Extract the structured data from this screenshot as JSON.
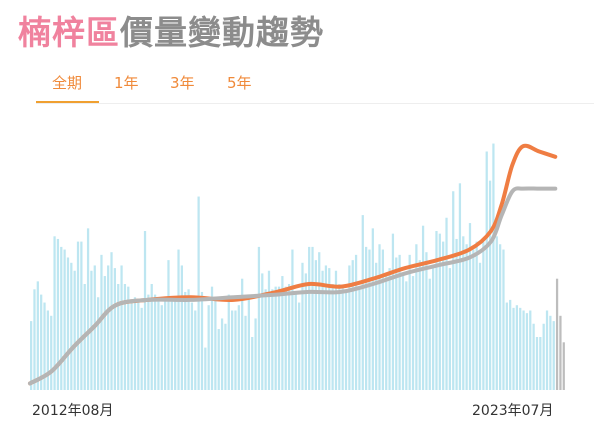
{
  "header": {
    "title_highlight": "楠梓區",
    "title_rest": "價量變動趨勢"
  },
  "tabs": [
    {
      "label": "全期",
      "active": true
    },
    {
      "label": "1年",
      "active": false
    },
    {
      "label": "3年",
      "active": false
    },
    {
      "label": "5年",
      "active": false
    }
  ],
  "colors": {
    "title_highlight": "#f0829e",
    "title_rest": "#8c8c8c",
    "tab_text": "#f08a3a",
    "tab_underline": "#f0a030",
    "volume_bar": "#bde6f1",
    "volume_bar_partial": "#bdbdbd",
    "price_line": "#ef7d43",
    "trend_line": "#b5b5b5"
  },
  "chart_data": {
    "type": "bar",
    "x_start_label": "2012年08月",
    "x_end_label": "2023年07月",
    "volume_bars_relative": [
      0.26,
      0.38,
      0.41,
      0.36,
      0.33,
      0.3,
      0.28,
      0.58,
      0.57,
      0.54,
      0.53,
      0.5,
      0.48,
      0.45,
      0.56,
      0.56,
      0.4,
      0.61,
      0.45,
      0.47,
      0.35,
      0.51,
      0.43,
      0.47,
      0.52,
      0.46,
      0.4,
      0.47,
      0.4,
      0.39,
      0.34,
      0.35,
      0.33,
      0.31,
      0.6,
      0.36,
      0.4,
      0.36,
      0.35,
      0.32,
      0.34,
      0.49,
      0.34,
      0.34,
      0.53,
      0.47,
      0.37,
      0.38,
      0.33,
      0.3,
      0.73,
      0.37,
      0.16,
      0.32,
      0.39,
      0.34,
      0.23,
      0.27,
      0.25,
      0.36,
      0.3,
      0.3,
      0.32,
      0.42,
      0.28,
      0.35,
      0.2,
      0.27,
      0.54,
      0.44,
      0.38,
      0.45,
      0.38,
      0.39,
      0.39,
      0.43,
      0.39,
      0.4,
      0.53,
      0.37,
      0.33,
      0.48,
      0.44,
      0.54,
      0.54,
      0.49,
      0.52,
      0.45,
      0.47,
      0.46,
      0.4,
      0.45,
      0.4,
      0.39,
      0.37,
      0.47,
      0.49,
      0.51,
      0.39,
      0.66,
      0.54,
      0.53,
      0.61,
      0.48,
      0.55,
      0.53,
      0.43,
      0.46,
      0.59,
      0.5,
      0.51,
      0.44,
      0.41,
      0.51,
      0.43,
      0.55,
      0.49,
      0.62,
      0.52,
      0.42,
      0.46,
      0.6,
      0.59,
      0.56,
      0.65,
      0.46,
      0.75,
      0.57,
      0.78,
      0.58,
      0.55,
      0.63,
      0.53,
      0.56,
      0.48,
      0.56,
      0.9,
      0.79,
      0.93,
      0.58,
      0.55,
      0.53,
      0.33,
      0.34,
      0.31,
      0.32,
      0.31,
      0.3,
      0.29,
      0.3,
      0.25,
      0.2,
      0.2,
      0.25,
      0.3,
      0.28,
      0.26
    ],
    "volume_bars_partial_relative": [
      0.42,
      0.28,
      0.18
    ],
    "price_line_relative": [
      [
        0.0,
        0.025
      ],
      [
        0.04,
        0.07
      ],
      [
        0.08,
        0.16
      ],
      [
        0.12,
        0.24
      ],
      [
        0.16,
        0.32
      ],
      [
        0.22,
        0.34
      ],
      [
        0.3,
        0.35
      ],
      [
        0.38,
        0.34
      ],
      [
        0.46,
        0.37
      ],
      [
        0.52,
        0.4
      ],
      [
        0.58,
        0.39
      ],
      [
        0.64,
        0.42
      ],
      [
        0.7,
        0.46
      ],
      [
        0.76,
        0.49
      ],
      [
        0.82,
        0.53
      ],
      [
        0.86,
        0.6
      ],
      [
        0.88,
        0.7
      ],
      [
        0.9,
        0.85
      ],
      [
        0.92,
        0.92
      ],
      [
        0.95,
        0.9
      ],
      [
        0.98,
        0.88
      ]
    ],
    "trend_line_relative": [
      [
        0.0,
        0.025
      ],
      [
        0.04,
        0.07
      ],
      [
        0.08,
        0.16
      ],
      [
        0.12,
        0.24
      ],
      [
        0.16,
        0.32
      ],
      [
        0.22,
        0.34
      ],
      [
        0.3,
        0.34
      ],
      [
        0.38,
        0.35
      ],
      [
        0.46,
        0.36
      ],
      [
        0.52,
        0.37
      ],
      [
        0.58,
        0.37
      ],
      [
        0.64,
        0.4
      ],
      [
        0.7,
        0.44
      ],
      [
        0.76,
        0.47
      ],
      [
        0.82,
        0.5
      ],
      [
        0.86,
        0.56
      ],
      [
        0.88,
        0.66
      ],
      [
        0.9,
        0.75
      ],
      [
        0.92,
        0.76
      ],
      [
        0.95,
        0.76
      ],
      [
        0.98,
        0.76
      ]
    ]
  }
}
